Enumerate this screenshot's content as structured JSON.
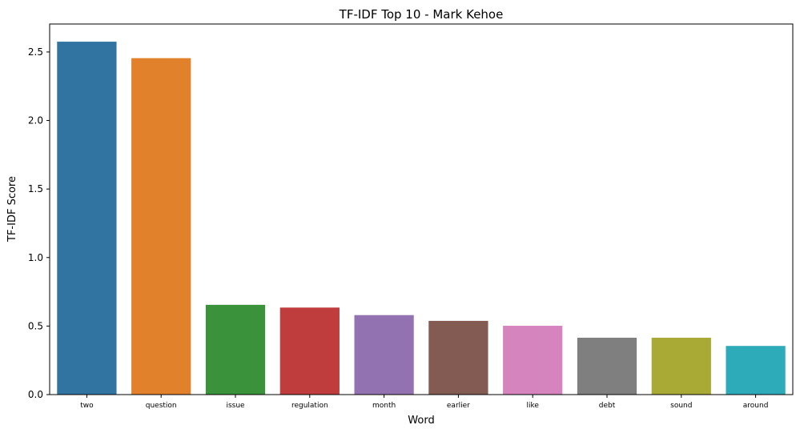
{
  "chart_data": {
    "type": "bar",
    "title": "TF-IDF Top 10 - Mark Kehoe",
    "xlabel": "Word",
    "ylabel": "TF-IDF Score",
    "categories": [
      "two",
      "question",
      "issue",
      "regulation",
      "month",
      "earlier",
      "like",
      "debt",
      "sound",
      "around"
    ],
    "values": [
      2.575,
      2.455,
      0.655,
      0.635,
      0.58,
      0.538,
      0.502,
      0.415,
      0.415,
      0.355
    ],
    "colors": [
      "#3274a1",
      "#e1812c",
      "#3a923a",
      "#c03d3e",
      "#9372b2",
      "#845b53",
      "#d684bd",
      "#7f7f7f",
      "#a9aa35",
      "#2eabb8"
    ],
    "yticks": [
      "0.0",
      "0.5",
      "1.0",
      "1.5",
      "2.0",
      "2.5"
    ],
    "ylim": [
      0,
      2.704
    ],
    "grid": false,
    "legend": "none"
  }
}
